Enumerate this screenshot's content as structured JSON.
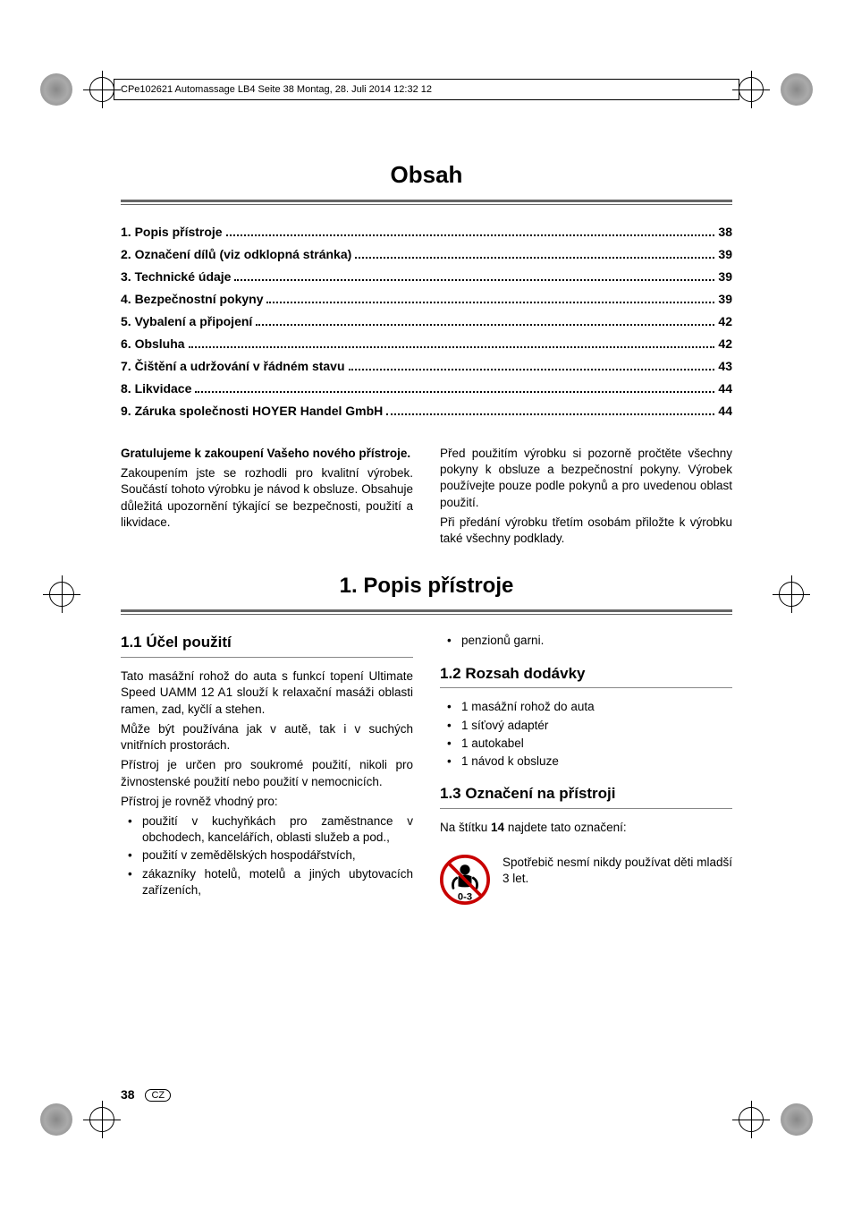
{
  "header": {
    "text": "CPe102621 Automassage LB4  Seite 38  Montag, 28. Juli 2014  12:32 12"
  },
  "main_title": "Obsah",
  "toc": [
    {
      "num": "1.",
      "label": "Popis přístroje",
      "page": "38"
    },
    {
      "num": "2.",
      "label": "Označení dílů (viz odklopná stránka)",
      "page": "39"
    },
    {
      "num": "3.",
      "label": "Technické údaje",
      "page": "39"
    },
    {
      "num": "4.",
      "label": "Bezpečnostní pokyny",
      "page": "39"
    },
    {
      "num": "5.",
      "label": "Vybalení a připojení",
      "page": "42"
    },
    {
      "num": "6.",
      "label": "Obsluha",
      "page": "42"
    },
    {
      "num": "7.",
      "label": "Čištění a udržování v řádném stavu",
      "page": "43"
    },
    {
      "num": "8.",
      "label": "Likvidace",
      "page": "44"
    },
    {
      "num": "9.",
      "label": "Záruka společnosti HOYER Handel GmbH",
      "page": "44"
    }
  ],
  "intro": {
    "left_bold": "Gratulujeme k zakoupení Vašeho nového přístroje.",
    "left_para": "Zakoupením jste se rozhodli pro kvalitní výrobek. Součástí tohoto výrobku je návod k obsluze. Obsahuje důležitá upozornění týkající se bezpečnosti, použití a likvidace.",
    "right_para1": "Před použitím výrobku si pozorně pročtěte všechny pokyny k obsluze a bezpečnostní pokyny. Výrobek používejte pouze podle pokynů a pro uvedenou oblast použití.",
    "right_para2": "Při předání výrobku třetím osobám přiložte k výrobku také všechny podklady."
  },
  "section1": {
    "title": "1. Popis přístroje",
    "sub1_1_title": "1.1 Účel použití",
    "sub1_1_p1": "Tato masážní rohož do auta s funkcí topení Ultimate Speed UAMM 12 A1 slouží k relaxační masáži oblasti ramen, zad, kyčlí a stehen.",
    "sub1_1_p2": "Může být používána jak v autě, tak i v suchých vnitřních prostorách.",
    "sub1_1_p3": "Přístroj je určen pro soukromé použití, nikoli pro živnostenské použití nebo použití v nemocnicích.",
    "sub1_1_p4": "Přístroj je rovněž vhodný pro:",
    "sub1_1_bullets": [
      "použití v kuchyňkách pro zaměstnance v obchodech, kancelářích, oblasti služeb a pod.,",
      "použití v zemědělských hospodářstvích,",
      "zákazníky hotelů, motelů a jiných ubytovacích zařízeních,"
    ],
    "right_top_bullet": "penzionů garni.",
    "sub1_2_title": "1.2 Rozsah dodávky",
    "sub1_2_bullets": [
      "1 masážní rohož do auta",
      "1 síťový adaptér",
      "1 autokabel",
      "1 návod k obsluze"
    ],
    "sub1_3_title": "1.3 Označení na přístroji",
    "sub1_3_p1_pre": "Na štítku ",
    "sub1_3_p1_bold": "14",
    "sub1_3_p1_post": " najdete tato označení:",
    "sub1_3_icon_text": "Spotřebič nesmí nikdy používat děti mladší 3 let.",
    "age_label": "0-3"
  },
  "footer": {
    "page_num": "38",
    "lang": "CZ"
  },
  "colors": {
    "text": "#000000",
    "underline": "#666666",
    "sub_underline": "#888888",
    "bg": "#ffffff",
    "icon_red": "#c80000"
  }
}
